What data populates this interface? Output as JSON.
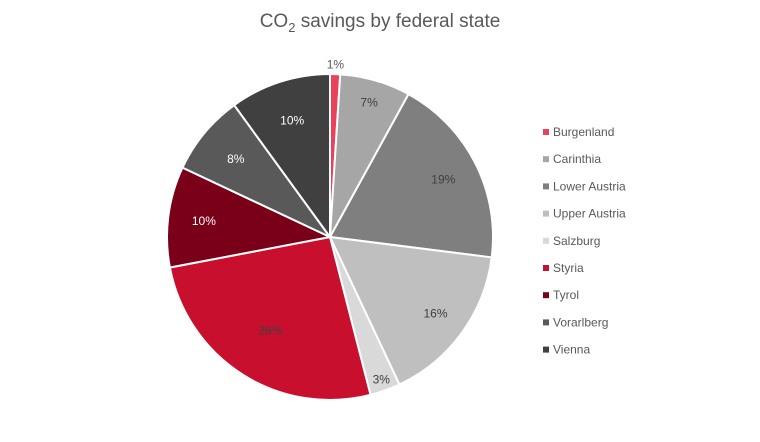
{
  "chart_data": {
    "type": "pie",
    "title": "CO₂ savings by federal state",
    "title_parts": {
      "main": "CO",
      "sub": "2",
      "rest": " savings by federal state"
    },
    "unit": "%",
    "legend_position": "right",
    "slices": [
      {
        "name": "Burgenland",
        "value": 1,
        "label": "1%",
        "color": "#e8435a",
        "label_color": "#595959"
      },
      {
        "name": "Carinthia",
        "value": 7,
        "label": "7%",
        "color": "#a6a6a6",
        "label_color": "#404040"
      },
      {
        "name": "Lower Austria",
        "value": 19,
        "label": "19%",
        "color": "#7f7f7f",
        "label_color": "#404040"
      },
      {
        "name": "Upper Austria",
        "value": 16,
        "label": "16%",
        "color": "#bfbfbf",
        "label_color": "#404040"
      },
      {
        "name": "Salzburg",
        "value": 3,
        "label": "3%",
        "color": "#d9d9d9",
        "label_color": "#404040"
      },
      {
        "name": "Styria",
        "value": 26,
        "label": "26%",
        "color": "#c8102e",
        "label_color": "#404040"
      },
      {
        "name": "Tyrol",
        "value": 10,
        "label": "10%",
        "color": "#7a0019",
        "label_color": "#ffffff"
      },
      {
        "name": "Vorarlberg",
        "value": 8,
        "label": "8%",
        "color": "#595959",
        "label_color": "#ffffff"
      },
      {
        "name": "Vienna",
        "value": 10,
        "label": "10%",
        "color": "#404040",
        "label_color": "#ffffff"
      }
    ]
  }
}
